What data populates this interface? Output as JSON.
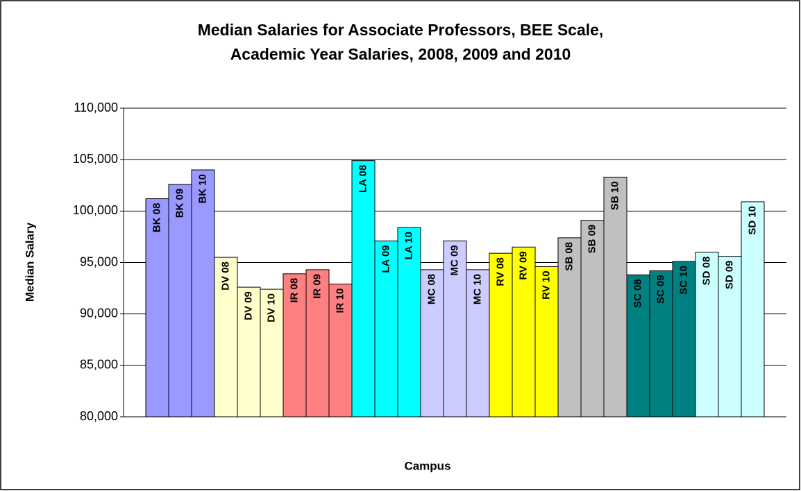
{
  "chart_data": {
    "type": "bar",
    "title": [
      "Median Salaries for Associate Professors, BEE Scale,",
      "Academic Year Salaries, 2008, 2009 and 2010"
    ],
    "x_label": "Campus",
    "y_label": "Median Salary",
    "categories": [
      "BK 08",
      "BK 09",
      "BK 10",
      "DV 08",
      "DV 09",
      "DV 10",
      "IR 08",
      "IR 09",
      "IR 10",
      "LA 08",
      "LA 09",
      "LA 10",
      "MC 08",
      "MC 09",
      "MC 10",
      "RV 08",
      "RV 09",
      "RV 10",
      "SB 08",
      "SB 09",
      "SB 10",
      "SC 08",
      "SC 09",
      "SC 10",
      "SD 08",
      "SD 09",
      "SD 10"
    ],
    "values": [
      101200,
      102600,
      104000,
      95500,
      92600,
      92400,
      93900,
      94300,
      92900,
      104900,
      97100,
      98400,
      94300,
      97100,
      94300,
      95900,
      96500,
      94600,
      97400,
      99100,
      103300,
      93800,
      94200,
      95100,
      96000,
      95600,
      100900
    ],
    "colors": [
      "#9999ff",
      "#9999ff",
      "#9999ff",
      "#ffffcc",
      "#ffffcc",
      "#ffffcc",
      "#ff8080",
      "#ff8080",
      "#ff8080",
      "#00ffff",
      "#00ffff",
      "#00ffff",
      "#ccccff",
      "#ccccff",
      "#ccccff",
      "#ffff00",
      "#ffff00",
      "#ffff00",
      "#c0c0c0",
      "#c0c0c0",
      "#c0c0c0",
      "#008080",
      "#008080",
      "#008080",
      "#ccffff",
      "#ccffff",
      "#ccffff"
    ],
    "ylim": [
      80000,
      110000
    ],
    "yticks": [
      {
        "value": 80000,
        "label": "80,000"
      },
      {
        "value": 85000,
        "label": "85,000"
      },
      {
        "value": 90000,
        "label": "90,000"
      },
      {
        "value": 95000,
        "label": "95,000"
      },
      {
        "value": 100000,
        "label": "100,000"
      },
      {
        "value": 105000,
        "label": "105,000"
      },
      {
        "value": 110000,
        "label": "110,000"
      }
    ],
    "grid": true
  }
}
